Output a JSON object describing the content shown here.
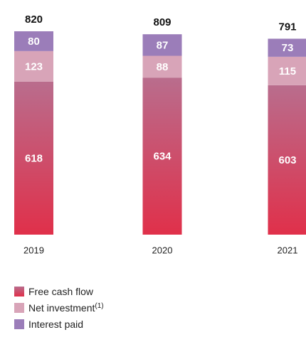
{
  "chart_data": {
    "type": "stacked_bar",
    "categories": [
      "2019",
      "2020",
      "2021"
    ],
    "series": [
      {
        "name": "Free cash flow",
        "color": "#e0304a",
        "values": [
          618,
          634,
          603
        ]
      },
      {
        "name": "Net investment",
        "name_note": "(1)",
        "color": "#d8a4b8",
        "values": [
          123,
          88,
          115
        ]
      },
      {
        "name": "Interest paid",
        "color": "#9b7db9",
        "values": [
          80,
          87,
          73
        ]
      }
    ],
    "totals": [
      820,
      809,
      791
    ]
  }
}
